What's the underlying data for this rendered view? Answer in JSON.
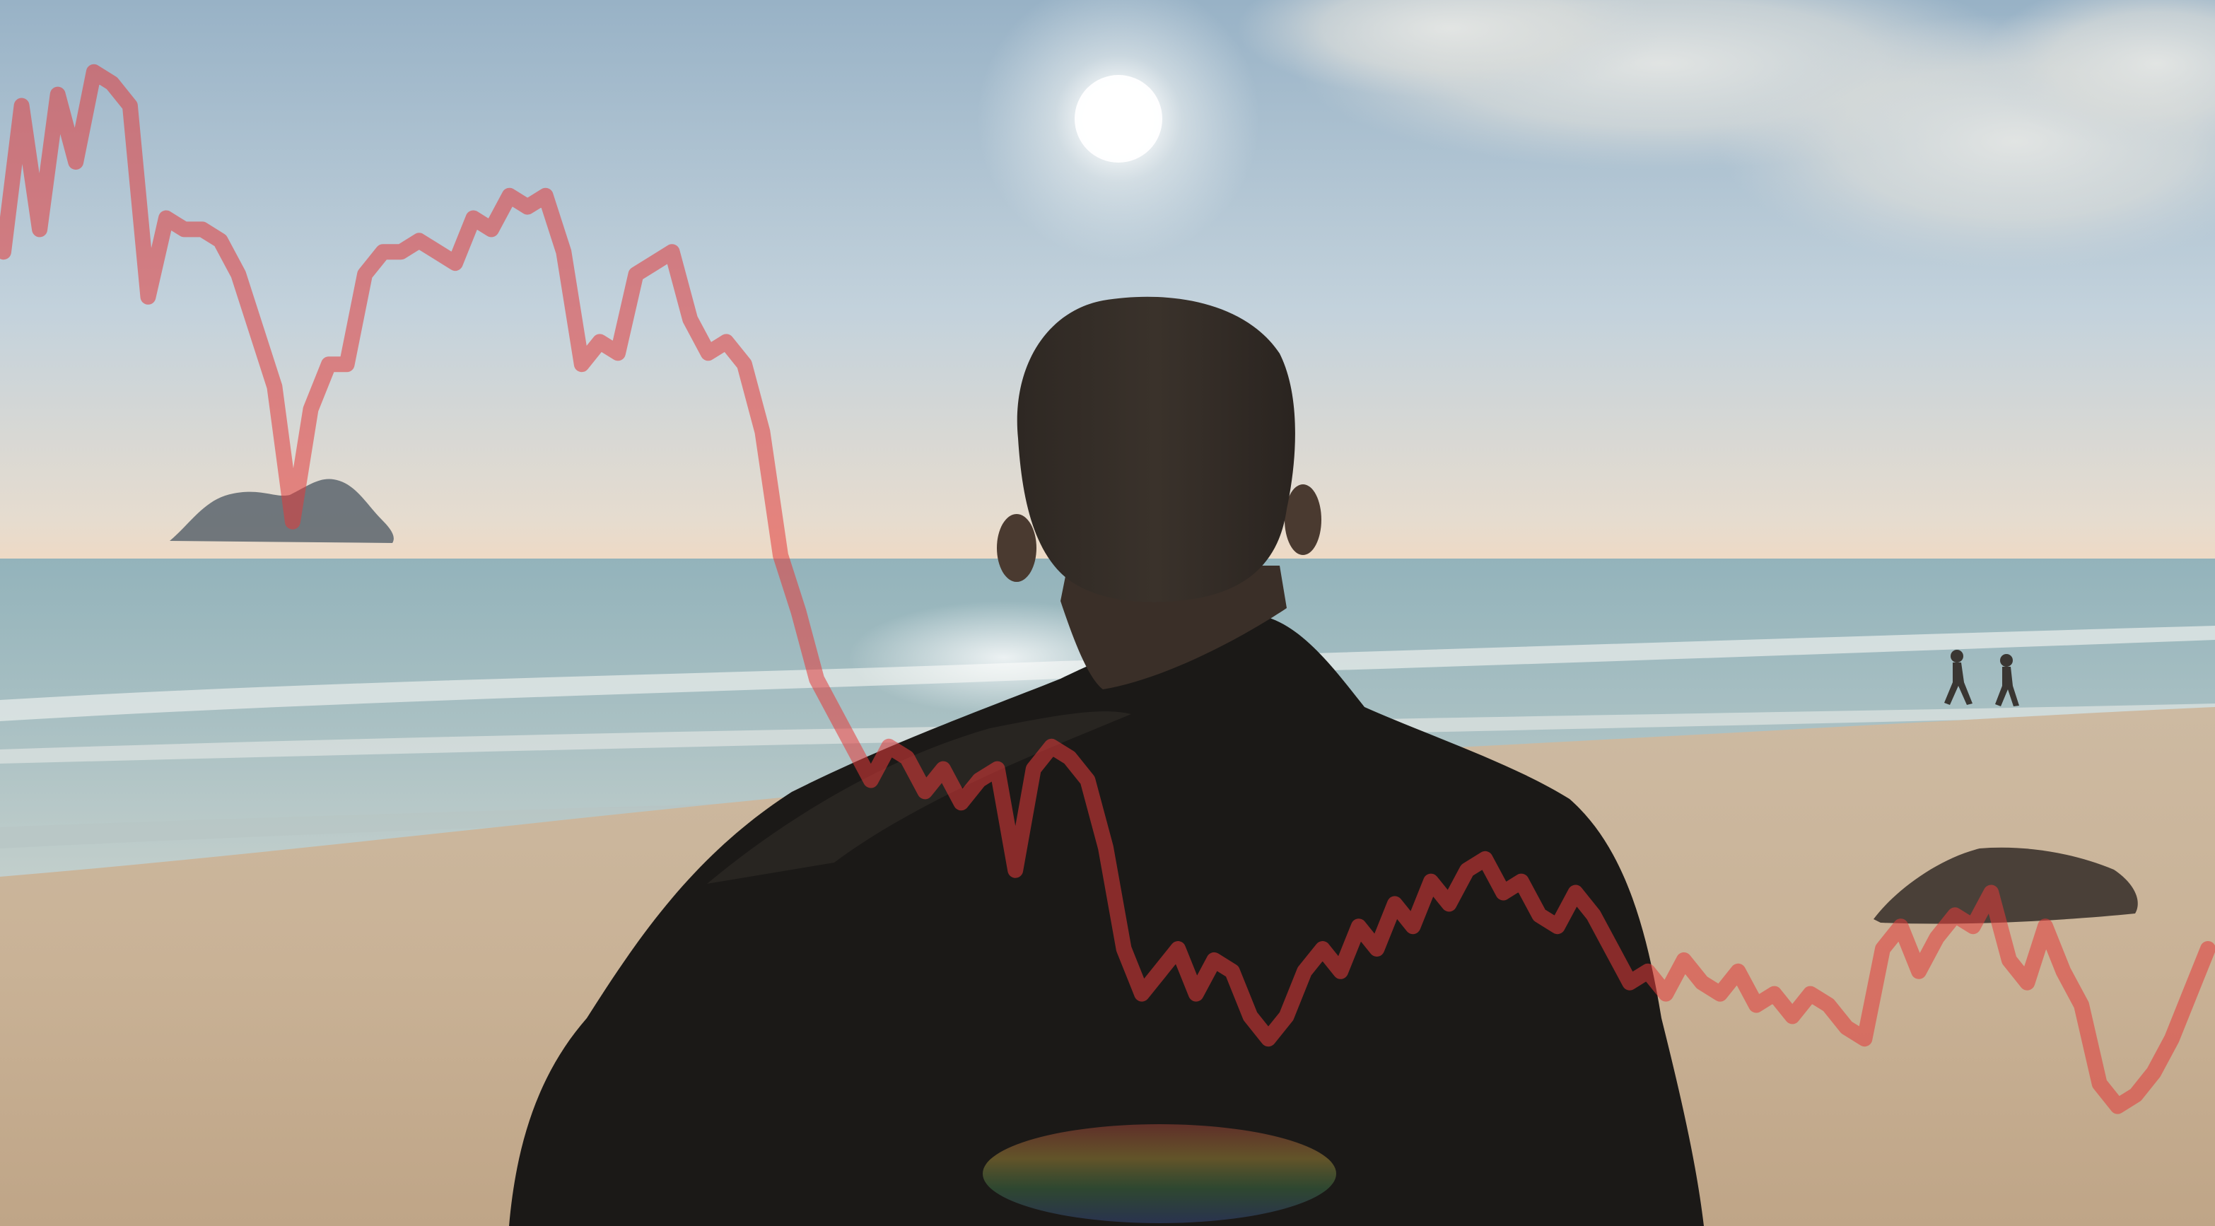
{
  "scene": {
    "subjects": [
      "person-back-view",
      "sun",
      "sea",
      "beach",
      "rock-island",
      "distant-runners",
      "beach-rock"
    ],
    "colors": {
      "sky_top": "#a9bfcf",
      "sky_horizon": "#e8ddd0",
      "sea": "#a5bec2",
      "sand": "#cbb79e",
      "silhouette": "#1c1a18",
      "overlay_line": "#e23a3a"
    }
  },
  "overlay_line": {
    "color": "#e23a3a",
    "opacity": 0.55,
    "values": [
      0.82,
      0.95,
      0.84,
      0.96,
      0.9,
      0.98,
      0.97,
      0.95,
      0.78,
      0.85,
      0.84,
      0.84,
      0.83,
      0.8,
      0.75,
      0.7,
      0.58,
      0.68,
      0.72,
      0.72,
      0.8,
      0.82,
      0.82,
      0.83,
      0.82,
      0.81,
      0.85,
      0.84,
      0.87,
      0.86,
      0.87,
      0.82,
      0.72,
      0.74,
      0.73,
      0.8,
      0.81,
      0.82,
      0.76,
      0.73,
      0.74,
      0.72,
      0.66,
      0.55,
      0.5,
      0.44,
      0.41,
      0.38,
      0.35,
      0.38,
      0.37,
      0.34,
      0.36,
      0.33,
      0.35,
      0.36,
      0.27,
      0.36,
      0.38,
      0.37,
      0.35,
      0.29,
      0.2,
      0.16,
      0.18,
      0.2,
      0.16,
      0.19,
      0.18,
      0.14,
      0.12,
      0.14,
      0.18,
      0.2,
      0.18,
      0.22,
      0.2,
      0.24,
      0.22,
      0.26,
      0.24,
      0.27,
      0.28,
      0.25,
      0.26,
      0.23,
      0.22,
      0.25,
      0.23,
      0.2,
      0.17,
      0.18,
      0.16,
      0.19,
      0.17,
      0.16,
      0.18,
      0.15,
      0.16,
      0.14,
      0.16,
      0.15,
      0.13,
      0.12,
      0.2,
      0.22,
      0.18,
      0.21,
      0.23,
      0.22,
      0.25,
      0.19,
      0.17,
      0.22,
      0.18,
      0.15,
      0.08,
      0.06,
      0.07,
      0.09,
      0.12,
      0.16,
      0.2
    ]
  }
}
